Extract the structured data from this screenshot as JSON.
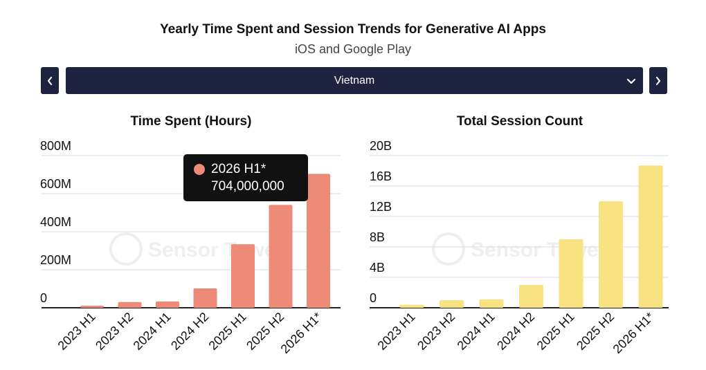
{
  "header": {
    "title": "Yearly Time Spent and Session Trends for Generative AI Apps",
    "subtitle": "iOS and Google Play"
  },
  "selector": {
    "prev_icon": "chevron-left-icon",
    "next_icon": "chevron-right-icon",
    "dropdown_icon": "chevron-down-icon",
    "selected_country": "Vietnam"
  },
  "watermark": "Sensor Tower",
  "colors": {
    "nav_bg": "#1e2440",
    "time_spent_bar": "#ee8a78",
    "session_bar": "#f9e282",
    "tooltip_bg": "#111111"
  },
  "tooltip": {
    "label": "2026 H1*",
    "value": "704,000,000"
  },
  "chart_data": [
    {
      "type": "bar",
      "title": "Time Spent (Hours)",
      "categories": [
        "2023 H1",
        "2023 H2",
        "2024 H1",
        "2024 H2",
        "2025 H1",
        "2025 H2",
        "2026 H1*"
      ],
      "values": [
        11000000,
        30000000,
        33000000,
        102000000,
        334000000,
        541000000,
        704000000
      ],
      "ylim": [
        0,
        800000000
      ],
      "yticks": [
        0,
        200000000,
        400000000,
        600000000,
        800000000
      ],
      "ytick_labels": [
        "0",
        "200M",
        "400M",
        "600M",
        "800M"
      ],
      "grid": true
    },
    {
      "type": "bar",
      "title": "Total Session Count",
      "categories": [
        "2023 H1",
        "2023 H2",
        "2024 H1",
        "2024 H2",
        "2025 H1",
        "2025 H2",
        "2026 H1*"
      ],
      "values": [
        400000000,
        1000000000,
        1100000000,
        3000000000,
        9000000000,
        14000000000,
        18700000000
      ],
      "ylim": [
        0,
        20000000000
      ],
      "yticks": [
        0,
        4000000000,
        8000000000,
        12000000000,
        16000000000,
        20000000000
      ],
      "ytick_labels": [
        "0",
        "4B",
        "8B",
        "12B",
        "16B",
        "20B"
      ],
      "grid": true
    }
  ]
}
